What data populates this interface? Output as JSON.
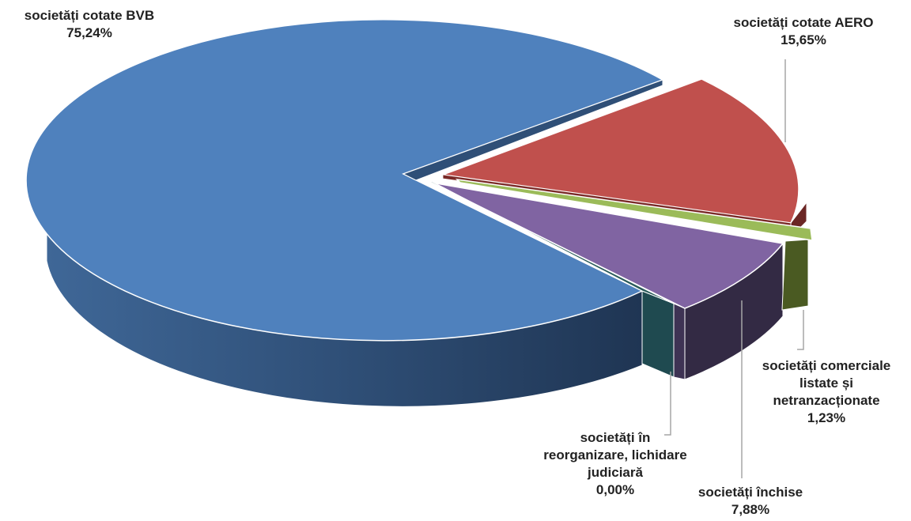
{
  "chart_data": {
    "type": "pie",
    "style": "3d-exploded",
    "title": "",
    "series": [
      {
        "slices": [
          {
            "label": "societăți cotate BVB",
            "value_text": "75,24%",
            "value": 75.24,
            "color": "#4f81bd"
          },
          {
            "label": "societăți cotate AERO",
            "value_text": "15,65%",
            "value": 15.65,
            "color": "#c0504d"
          },
          {
            "label": "societăți comerciale listate și netranzacționate",
            "value_text": "1,23%",
            "value": 1.23,
            "color": "#9bbb59"
          },
          {
            "label": "societăți închise",
            "value_text": "7,88%",
            "value": 7.88,
            "color": "#8064a2"
          },
          {
            "label": "societăți în reorganizare, lichidare judiciară",
            "value_text": "0,00%",
            "value": 0.0,
            "color": "#4bacc6"
          }
        ]
      }
    ],
    "labels": {
      "bvb": {
        "lines": [
          "societăți cotate BVB",
          "75,24%"
        ]
      },
      "aero": {
        "lines": [
          "societăți cotate AERO",
          "15,65%"
        ]
      },
      "listate": {
        "lines": [
          "societăți comerciale",
          "listate și",
          "netranzacționate",
          "1,23%"
        ]
      },
      "inchise": {
        "lines": [
          "societăți închise",
          "7,88%"
        ]
      },
      "reorg": {
        "lines": [
          "societăți în",
          "reorganizare, lichidare",
          "judiciară",
          "0,00%"
        ]
      }
    }
  }
}
